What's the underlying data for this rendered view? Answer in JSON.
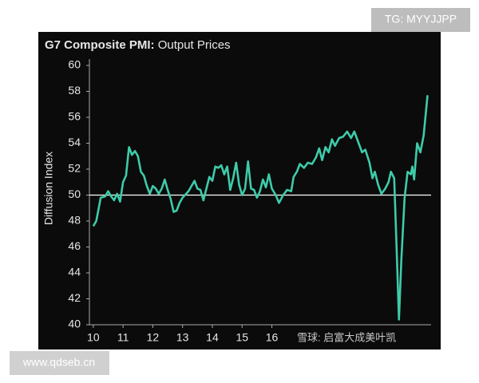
{
  "chart_data": {
    "type": "line",
    "title": "G7 Composite PMI:",
    "subtitle": "Output Prices",
    "y_label": "Diffusion Index",
    "reference_line": 50,
    "watermarks": [
      "TG: MYYJJPP",
      "www.qdseb.cn",
      "雪球: 启富大成美叶凯"
    ],
    "xlim": [
      2009.87,
      2021.35
    ],
    "ylim": [
      40,
      60
    ],
    "yticks": [
      40,
      42,
      44,
      46,
      48,
      50,
      52,
      54,
      56,
      58,
      60
    ],
    "xticks": [
      {
        "value": 2010,
        "label": "10"
      },
      {
        "value": 2011,
        "label": "11"
      },
      {
        "value": 2012,
        "label": "12"
      },
      {
        "value": 2013,
        "label": "13"
      },
      {
        "value": 2014,
        "label": "14"
      },
      {
        "value": 2015,
        "label": "15"
      },
      {
        "value": 2016,
        "label": "16"
      }
    ],
    "series": [
      {
        "color": "#3ecba9",
        "x": [
          2010.0,
          2010.1,
          2010.25,
          2010.4,
          2010.5,
          2010.6,
          2010.7,
          2010.8,
          2010.9,
          2011.0,
          2011.1,
          2011.2,
          2011.3,
          2011.4,
          2011.5,
          2011.6,
          2011.7,
          2011.8,
          2011.9,
          2012.0,
          2012.1,
          2012.2,
          2012.3,
          2012.4,
          2012.5,
          2012.6,
          2012.7,
          2012.8,
          2012.9,
          2013.0,
          2013.2,
          2013.4,
          2013.5,
          2013.6,
          2013.7,
          2013.8,
          2013.9,
          2014.0,
          2014.1,
          2014.2,
          2014.3,
          2014.4,
          2014.5,
          2014.6,
          2014.7,
          2014.8,
          2014.9,
          2015.0,
          2015.1,
          2015.2,
          2015.3,
          2015.4,
          2015.5,
          2015.6,
          2015.7,
          2015.8,
          2015.9,
          2016.0,
          2016.13,
          2016.24,
          2016.38,
          2016.51,
          2016.65,
          2016.73,
          2016.84,
          2016.94,
          2017.08,
          2017.21,
          2017.35,
          2017.48,
          2017.59,
          2017.69,
          2017.8,
          2017.91,
          2018.02,
          2018.12,
          2018.26,
          2018.39,
          2018.53,
          2018.66,
          2018.77,
          2018.9,
          2019.03,
          2019.14,
          2019.28,
          2019.38,
          2019.46,
          2019.57,
          2019.68,
          2019.81,
          2019.92,
          2020.0,
          2020.11,
          2020.19,
          2020.27,
          2020.35,
          2020.46,
          2020.56,
          2020.67,
          2020.72,
          2020.78,
          2020.88,
          2020.99,
          2021.1,
          2021.23
        ],
        "values": [
          47.6,
          48.0,
          49.8,
          49.9,
          50.3,
          49.9,
          49.6,
          50.1,
          49.5,
          51.0,
          51.5,
          53.7,
          53.1,
          53.4,
          53.0,
          51.8,
          51.5,
          50.7,
          50.1,
          50.7,
          50.5,
          50.1,
          50.5,
          51.2,
          50.4,
          49.7,
          48.7,
          48.8,
          49.4,
          49.8,
          50.3,
          51.1,
          50.5,
          50.4,
          49.6,
          50.5,
          51.4,
          51.1,
          52.2,
          52.1,
          52.3,
          51.6,
          52.2,
          50.4,
          51.3,
          52.5,
          50.8,
          50.0,
          50.5,
          52.6,
          50.5,
          50.4,
          49.8,
          50.3,
          51.2,
          50.6,
          51.6,
          50.5,
          50.0,
          49.4,
          50.0,
          50.4,
          50.3,
          51.4,
          51.8,
          52.4,
          52.1,
          52.5,
          52.4,
          52.9,
          53.6,
          52.7,
          53.7,
          53.3,
          54.3,
          53.8,
          54.4,
          54.5,
          54.9,
          54.4,
          54.9,
          54.1,
          53.3,
          53.5,
          52.5,
          51.3,
          51.8,
          50.8,
          50.1,
          50.5,
          51.0,
          51.8,
          51.3,
          46.0,
          40.4,
          45.0,
          49.8,
          51.8,
          51.6,
          52.2,
          51.2,
          54.0,
          53.3,
          54.6,
          57.7
        ]
      }
    ]
  }
}
